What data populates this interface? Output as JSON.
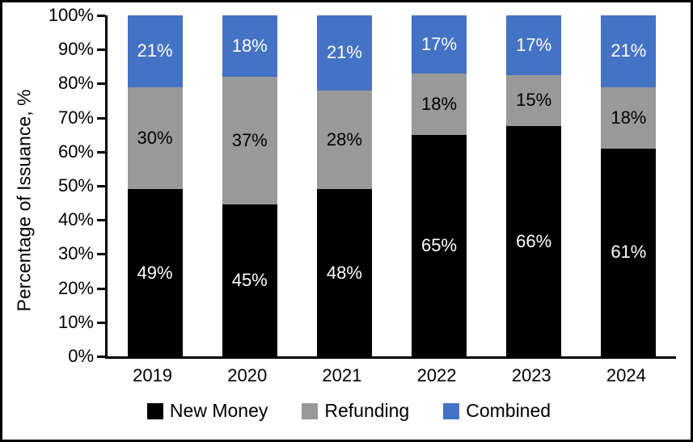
{
  "chart_data": {
    "type": "bar",
    "stacked": true,
    "title": "",
    "xlabel": "",
    "ylabel": "Percentage of Issuance, %",
    "ylim": [
      0,
      100
    ],
    "grid": false,
    "legend_position": "bottom",
    "y_ticks": [
      "0%",
      "10%",
      "20%",
      "30%",
      "40%",
      "50%",
      "60%",
      "70%",
      "80%",
      "90%",
      "100%"
    ],
    "categories": [
      "2019",
      "2020",
      "2021",
      "2022",
      "2023",
      "2024"
    ],
    "series": [
      {
        "name": "New Money",
        "color": "#000000",
        "label_color": "#ffffff",
        "values": [
          49,
          45,
          48,
          65,
          66,
          61
        ],
        "labels": [
          "49%",
          "45%",
          "48%",
          "65%",
          "66%",
          "61%"
        ],
        "heights": [
          49,
          44.5,
          49,
          65,
          67.5,
          61
        ]
      },
      {
        "name": "Refunding",
        "color": "#999999",
        "label_color": "#000000",
        "values": [
          30,
          37,
          28,
          18,
          15,
          18
        ],
        "labels": [
          "30%",
          "37%",
          "28%",
          "18%",
          "15%",
          "18%"
        ],
        "heights": [
          30,
          37.5,
          29,
          18,
          15,
          18
        ]
      },
      {
        "name": "Combined",
        "color": "#4472C4",
        "label_color": "#ffffff",
        "values": [
          21,
          18,
          21,
          17,
          17,
          21
        ],
        "labels": [
          "21%",
          "18%",
          "21%",
          "17%",
          "17%",
          "21%"
        ],
        "heights": [
          21,
          18,
          22,
          17,
          17.5,
          21
        ]
      }
    ]
  },
  "colors": {
    "background": "#ffffff",
    "axis": "#000000",
    "new_money": "#000000",
    "refunding": "#999999",
    "combined": "#4472C4"
  }
}
